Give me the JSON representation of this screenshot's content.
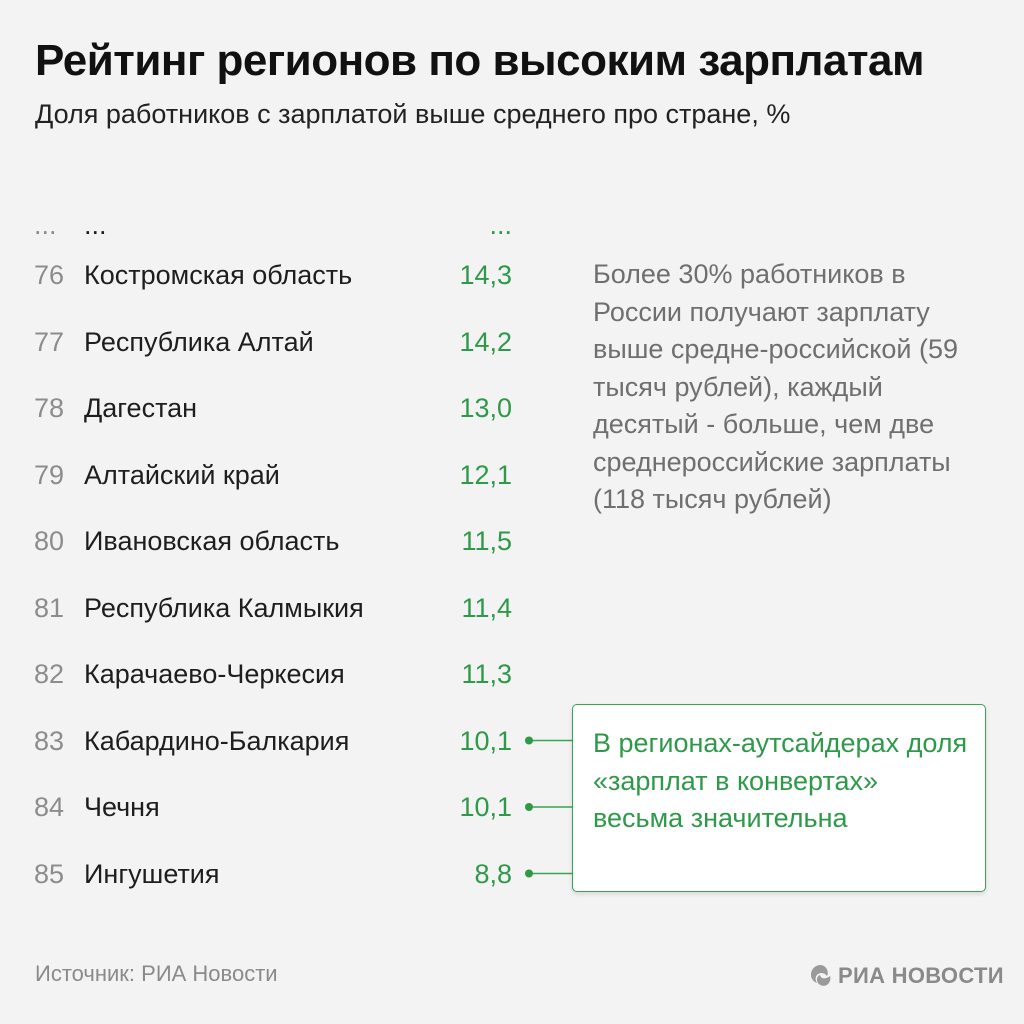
{
  "header": {
    "title": "Рейтинг регионов по высоким зарплатам",
    "subtitle": "Доля работников с зарплатой выше среднего про стране, %"
  },
  "chart_data": {
    "type": "table",
    "title": "Рейтинг регионов по высоким зарплатам",
    "subtitle": "Доля работников с зарплатой выше среднего про стране, %",
    "ellipsis": {
      "rank": "...",
      "region": "...",
      "value": "..."
    },
    "rows": [
      {
        "rank": "76",
        "region": "Костромская область",
        "value": "14,3"
      },
      {
        "rank": "77",
        "region": "Республика Алтай",
        "value": "14,2"
      },
      {
        "rank": "78",
        "region": "Дагестан",
        "value": "13,0"
      },
      {
        "rank": "79",
        "region": "Алтайский край",
        "value": "12,1"
      },
      {
        "rank": "80",
        "region": "Ивановская область",
        "value": "11,5"
      },
      {
        "rank": "81",
        "region": "Республика Калмыкия",
        "value": "11,4"
      },
      {
        "rank": "82",
        "region": "Карачаево-Черкесия",
        "value": "11,3"
      },
      {
        "rank": "83",
        "region": "Кабардино-Балкария",
        "value": "10,1"
      },
      {
        "rank": "84",
        "region": "Чечня",
        "value": "10,1"
      },
      {
        "rank": "85",
        "region": "Ингушетия",
        "value": "8,8"
      }
    ],
    "highlighted_ranks": [
      "83",
      "84",
      "85"
    ]
  },
  "note": {
    "text": "Более 30% работников в России получают зарплату выше средне-российской (59 тысяч рублей), каждый десятый - больше, чем две среднероссийские зарплаты (118 тысяч рублей)"
  },
  "callout": {
    "text": "В регионах-аутсайдерах доля «зарплат в конвертах» весьма значительна"
  },
  "footer": {
    "source": "Источник: РИА Новости",
    "logo_text": "РИА НОВОСТИ"
  },
  "colors": {
    "accent": "#2e9a49",
    "callout_border": "#39a356",
    "background": "#f3f3f3"
  }
}
